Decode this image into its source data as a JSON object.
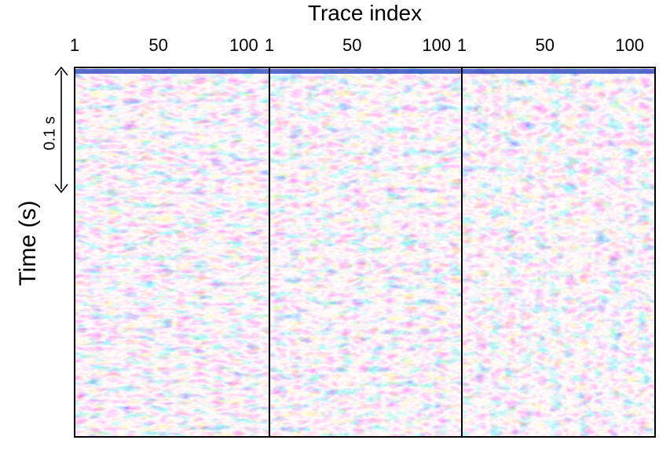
{
  "chart_data": {
    "type": "heatmap",
    "title": "Trace index",
    "ylabel": "Time (s)",
    "scale_bar": {
      "label": "0.1 s",
      "duration_s": 0.1
    },
    "colormap": [
      "#1f3fbf",
      "#ffffff",
      "#d81b45"
    ],
    "panels": [
      {
        "xticks": [
          1,
          50,
          100
        ],
        "xlim": [
          1,
          115
        ]
      },
      {
        "xticks": [
          1,
          50,
          100
        ],
        "xlim": [
          1,
          115
        ]
      },
      {
        "xticks": [
          1,
          50,
          100
        ],
        "xlim": [
          1,
          115
        ]
      }
    ]
  }
}
